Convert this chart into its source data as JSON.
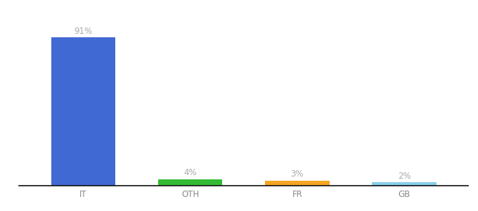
{
  "categories": [
    "IT",
    "OTH",
    "FR",
    "GB"
  ],
  "values": [
    91,
    4,
    3,
    2
  ],
  "bar_colors": [
    "#4169d4",
    "#33bb33",
    "#f5a623",
    "#87ceeb"
  ],
  "labels": [
    "91%",
    "4%",
    "3%",
    "2%"
  ],
  "ylim": [
    0,
    105
  ],
  "background_color": "#ffffff",
  "label_color": "#aaaaaa",
  "label_fontsize": 8.5,
  "tick_fontsize": 8.5,
  "tick_color": "#888888",
  "bar_width": 0.6
}
